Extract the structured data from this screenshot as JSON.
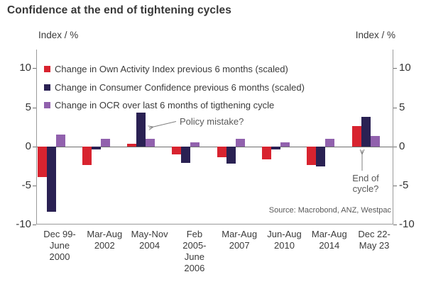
{
  "title": "Confidence at the end of tightening cycles",
  "axis_unit_left": "Index / %",
  "axis_unit_right": "Index / %",
  "source": "Source: Macrobond, ANZ, Westpac",
  "annotations": {
    "policy_mistake": "Policy mistake?",
    "end_of_cycle": "End of\ncycle?"
  },
  "colors": {
    "own_activity": "#d8232f",
    "consumer_confidence": "#2a2153",
    "ocr": "#9161ad",
    "axis": "#9a9a9a",
    "zero_line": "#6e6e6e",
    "text": "#3a3a3a",
    "annotation_text": "#595959"
  },
  "chart_data": {
    "type": "bar",
    "title": "Confidence at the end of tightening cycles",
    "ylabel": "Index / %",
    "ylim": [
      -10,
      12.4
    ],
    "yticks": [
      10,
      5,
      0,
      -5,
      -10
    ],
    "grid": false,
    "legend_position": "top-left-inside",
    "categories": [
      "Dec 99-\nJune\n2000",
      "Mar-Aug\n2002",
      "May-Nov\n2004",
      "Feb\n2005-\nJune\n2006",
      "Mar-Aug\n2007",
      "Jun-Aug\n2010",
      "Mar-Aug\n2014",
      "Dec 22-\nMay 23"
    ],
    "series": [
      {
        "name": "Change in Own Activity Index previous 6 months (scaled)",
        "color": "#d8232f",
        "values": [
          -3.9,
          -2.4,
          0.3,
          -1.0,
          -1.4,
          -1.7,
          -2.4,
          2.6
        ]
      },
      {
        "name": "Change in Consumer Confidence previous 6 months (scaled)",
        "color": "#2a2153",
        "values": [
          -8.4,
          -0.4,
          4.3,
          -2.1,
          -2.2,
          -0.4,
          -2.6,
          3.8
        ]
      },
      {
        "name": "Change in OCR over last 6 months of tigthening cycle",
        "color": "#9161ad",
        "values": [
          1.5,
          1.0,
          1.0,
          0.5,
          1.0,
          0.5,
          1.0,
          1.3
        ]
      }
    ]
  }
}
